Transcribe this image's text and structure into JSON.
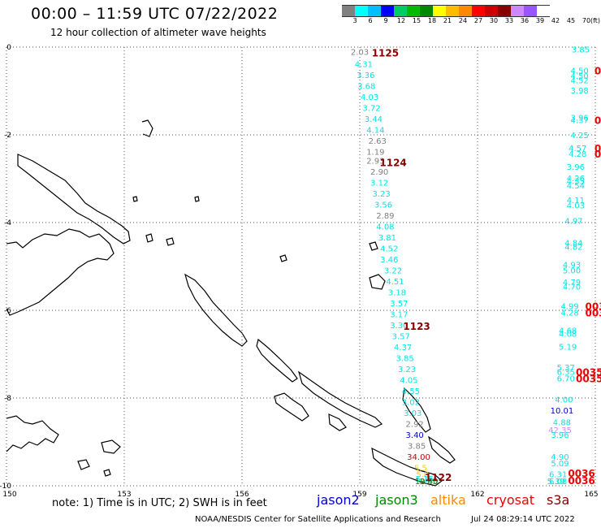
{
  "header": {
    "title": "00:00 – 11:59 UTC 07/22/2022",
    "subtitle": "12 hour collection of altimeter wave heights"
  },
  "color_scale": {
    "ticks": [
      "3",
      "6",
      "9",
      "12",
      "15",
      "18",
      "21",
      "24",
      "27",
      "30",
      "33",
      "36",
      "39",
      "42",
      "45",
      "70"
    ],
    "unit": "(ft)",
    "colors": [
      "#808080",
      "#00ffff",
      "#00bfff",
      "#0000ff",
      "#00cc66",
      "#00bb00",
      "#008800",
      "#ffff00",
      "#ffbb00",
      "#ff8800",
      "#ff0000",
      "#cc0000",
      "#880000",
      "#cc88ff",
      "#9955ff",
      "#ffffff"
    ]
  },
  "map": {
    "lon_labels": [
      "150",
      "153",
      "156",
      "159",
      "162",
      "165"
    ],
    "lat_labels": [
      "0",
      "-2",
      "-4",
      "-6",
      "-8",
      "-10"
    ],
    "lon_range": [
      150,
      165
    ],
    "lat_range": [
      -10,
      0
    ]
  },
  "observations": [
    {
      "value": "2.03",
      "lon": 159.0,
      "lat": -0.1,
      "color": "#808080"
    },
    {
      "value": "4.31",
      "lon": 159.1,
      "lat": -0.38,
      "color": "#00e5e5"
    },
    {
      "value": "3.36",
      "lon": 159.15,
      "lat": -0.63,
      "color": "#00e5e5"
    },
    {
      "value": "3.68",
      "lon": 159.17,
      "lat": -0.88,
      "color": "#00e5e5"
    },
    {
      "value": "4.03",
      "lon": 159.25,
      "lat": -1.13,
      "color": "#00e5e5"
    },
    {
      "value": "3.72",
      "lon": 159.3,
      "lat": -1.38,
      "color": "#00e5e5"
    },
    {
      "value": "3.44",
      "lon": 159.35,
      "lat": -1.63,
      "color": "#00e5e5"
    },
    {
      "value": "4.14",
      "lon": 159.4,
      "lat": -1.88,
      "color": "#00e5e5"
    },
    {
      "value": "2.63",
      "lon": 159.45,
      "lat": -2.13,
      "color": "#808080"
    },
    {
      "value": "1.19",
      "lon": 159.4,
      "lat": -2.38,
      "color": "#808080"
    },
    {
      "value": "2.93",
      "lon": 159.4,
      "lat": -2.58,
      "color": "#808080"
    },
    {
      "value": "2.90",
      "lon": 159.5,
      "lat": -2.83,
      "color": "#808080"
    },
    {
      "value": "3.12",
      "lon": 159.5,
      "lat": -3.08,
      "color": "#00e5e5"
    },
    {
      "value": "3.23",
      "lon": 159.55,
      "lat": -3.33,
      "color": "#00e5e5"
    },
    {
      "value": "3.56",
      "lon": 159.6,
      "lat": -3.58,
      "color": "#00e5e5"
    },
    {
      "value": "2.89",
      "lon": 159.65,
      "lat": -3.83,
      "color": "#808080"
    },
    {
      "value": "4.08",
      "lon": 159.65,
      "lat": -4.08,
      "color": "#00e5e5"
    },
    {
      "value": "3.81",
      "lon": 159.7,
      "lat": -4.33,
      "color": "#00e5e5"
    },
    {
      "value": "4.52",
      "lon": 159.75,
      "lat": -4.58,
      "color": "#00e5e5"
    },
    {
      "value": "3.46",
      "lon": 159.75,
      "lat": -4.83,
      "color": "#00e5e5"
    },
    {
      "value": "3.22",
      "lon": 159.85,
      "lat": -5.08,
      "color": "#00e5e5"
    },
    {
      "value": "4.51",
      "lon": 159.9,
      "lat": -5.33,
      "color": "#00e5e5"
    },
    {
      "value": "3.18",
      "lon": 159.95,
      "lat": -5.58,
      "color": "#00e5e5"
    },
    {
      "value": "3.57",
      "lon": 160.0,
      "lat": -5.83,
      "color": "#00e5e5"
    },
    {
      "value": "3.17",
      "lon": 160.0,
      "lat": -6.08,
      "color": "#00e5e5"
    },
    {
      "value": "3.30",
      "lon": 160.0,
      "lat": -6.33,
      "color": "#00e5e5"
    },
    {
      "value": "3.57",
      "lon": 160.05,
      "lat": -6.58,
      "color": "#00e5e5"
    },
    {
      "value": "4.37",
      "lon": 160.1,
      "lat": -6.83,
      "color": "#00e5e5"
    },
    {
      "value": "3.85",
      "lon": 160.15,
      "lat": -7.08,
      "color": "#00e5e5"
    },
    {
      "value": "3.23",
      "lon": 160.2,
      "lat": -7.33,
      "color": "#00e5e5"
    },
    {
      "value": "4.05",
      "lon": 160.25,
      "lat": -7.58,
      "color": "#00e5e5"
    },
    {
      "value": "4.55",
      "lon": 160.3,
      "lat": -7.83,
      "color": "#00e5e5"
    },
    {
      "value": "3.02",
      "lon": 160.3,
      "lat": -8.08,
      "color": "#00e5e5"
    },
    {
      "value": "3.03",
      "lon": 160.35,
      "lat": -8.33,
      "color": "#00e5e5"
    },
    {
      "value": "2.92",
      "lon": 160.4,
      "lat": -8.58,
      "color": "#808080"
    },
    {
      "value": "3.40",
      "lon": 160.4,
      "lat": -8.83,
      "color": "#0000cc"
    },
    {
      "value": "3.85",
      "lon": 160.45,
      "lat": -9.08,
      "color": "#808080"
    },
    {
      "value": "34.00",
      "lon": 160.5,
      "lat": -9.33,
      "color": "#cc0000"
    },
    {
      "value": "5.5",
      "lon": 160.55,
      "lat": -9.58,
      "color": "#dddd00"
    },
    {
      "value": "5.0",
      "lon": 160.6,
      "lat": -9.73,
      "color": "#ffbb00"
    },
    {
      "value": "5.15",
      "lon": 160.65,
      "lat": -9.83,
      "color": "#00e5e5"
    },
    {
      "value": "2.65",
      "lon": 160.75,
      "lat": -10.12,
      "color": "#808080"
    },
    {
      "value": "19.40",
      "lon": 160.7,
      "lat": -10.37,
      "color": "#008800"
    },
    {
      "value": "3.85",
      "lon": 164.7,
      "lat": -0.05,
      "color": "#00e5e5"
    },
    {
      "value": "4.50",
      "lon": 164.6,
      "lat": -0.53,
      "color": "#00e5e5"
    },
    {
      "value": "4.50",
      "lon": 164.6,
      "lat": -0.65,
      "color": "#00e5e5"
    },
    {
      "value": "4.52",
      "lon": 164.6,
      "lat": -0.75,
      "color": "#00e5e5"
    },
    {
      "value": "3.98",
      "lon": 164.6,
      "lat": -0.98,
      "color": "#00e5e5"
    },
    {
      "value": "3.96",
      "lon": 164.6,
      "lat": -1.6,
      "color": "#00e5e5"
    },
    {
      "value": "4.37",
      "lon": 164.6,
      "lat": -1.66,
      "color": "#00e5e5"
    },
    {
      "value": "4.25",
      "lon": 164.6,
      "lat": -2.0,
      "color": "#00e5e5"
    },
    {
      "value": "4.57",
      "lon": 164.55,
      "lat": -2.3,
      "color": "#00e5e5"
    },
    {
      "value": "4.28",
      "lon": 164.55,
      "lat": -2.43,
      "color": "#00e5e5"
    },
    {
      "value": "3.96",
      "lon": 164.5,
      "lat": -2.72,
      "color": "#00e5e5"
    },
    {
      "value": "4.26",
      "lon": 164.5,
      "lat": -2.98,
      "color": "#00e5e5"
    },
    {
      "value": "4.35",
      "lon": 164.5,
      "lat": -3.05,
      "color": "#00e5e5"
    },
    {
      "value": "4.54",
      "lon": 164.5,
      "lat": -3.15,
      "color": "#00e5e5"
    },
    {
      "value": "4.11",
      "lon": 164.5,
      "lat": -3.48,
      "color": "#00e5e5"
    },
    {
      "value": "4.03",
      "lon": 164.5,
      "lat": -3.6,
      "color": "#00e5e5"
    },
    {
      "value": "4.97",
      "lon": 164.45,
      "lat": -3.95,
      "color": "#00e5e5"
    },
    {
      "value": "4.84",
      "lon": 164.45,
      "lat": -4.45,
      "color": "#00e5e5"
    },
    {
      "value": "4.82",
      "lon": 164.45,
      "lat": -4.55,
      "color": "#00e5e5"
    },
    {
      "value": "4.93",
      "lon": 164.4,
      "lat": -4.95,
      "color": "#00e5e5"
    },
    {
      "value": "5.00",
      "lon": 164.4,
      "lat": -5.08,
      "color": "#00e5e5"
    },
    {
      "value": "4.79",
      "lon": 164.4,
      "lat": -5.35,
      "color": "#00e5e5"
    },
    {
      "value": "4.70",
      "lon": 164.4,
      "lat": -5.45,
      "color": "#00e5e5"
    },
    {
      "value": "4.99",
      "lon": 164.35,
      "lat": -5.9,
      "color": "#00e5e5"
    },
    {
      "value": "4.28",
      "lon": 164.35,
      "lat": -6.05,
      "color": "#00e5e5"
    },
    {
      "value": "4.68",
      "lon": 164.3,
      "lat": -6.45,
      "color": "#00e5e5"
    },
    {
      "value": "4.08",
      "lon": 164.3,
      "lat": -6.53,
      "color": "#00e5e5"
    },
    {
      "value": "5.19",
      "lon": 164.3,
      "lat": -6.82,
      "color": "#00e5e5"
    },
    {
      "value": "5.37",
      "lon": 164.25,
      "lat": -7.3,
      "color": "#00e5e5"
    },
    {
      "value": "6.35",
      "lon": 164.25,
      "lat": -7.4,
      "color": "#00e5e5"
    },
    {
      "value": "6.70",
      "lon": 164.25,
      "lat": -7.55,
      "color": "#00e5e5"
    },
    {
      "value": "4.00",
      "lon": 164.2,
      "lat": -8.03,
      "color": "#00e5e5"
    },
    {
      "value": "10.01",
      "lon": 164.15,
      "lat": -8.28,
      "color": "#0000cc"
    },
    {
      "value": "4.88",
      "lon": 164.15,
      "lat": -8.55,
      "color": "#00e5e5"
    },
    {
      "value": "42.35",
      "lon": 164.1,
      "lat": -8.72,
      "color": "#cc88ff"
    },
    {
      "value": "3.96",
      "lon": 164.1,
      "lat": -8.83,
      "color": "#00e5e5"
    },
    {
      "value": "4.90",
      "lon": 164.1,
      "lat": -9.33,
      "color": "#00e5e5"
    },
    {
      "value": "5.09",
      "lon": 164.1,
      "lat": -9.48,
      "color": "#00e5e5"
    },
    {
      "value": "6.31",
      "lon": 164.05,
      "lat": -9.73,
      "color": "#00e5e5"
    },
    {
      "value": "6.08",
      "lon": 164.05,
      "lat": -9.93,
      "color": "#00e5e5"
    },
    {
      "value": "5.39",
      "lon": 164.0,
      "lat": -10.17,
      "color": "#00e5e5"
    }
  ],
  "pass_times": [
    {
      "label": "1125",
      "lon": 159.65,
      "lat": -0.12,
      "color": "#880000"
    },
    {
      "label": "1124",
      "lon": 159.85,
      "lat": -2.62,
      "color": "#880000"
    },
    {
      "label": "1123",
      "lon": 160.45,
      "lat": -6.35,
      "color": "#880000"
    },
    {
      "label": "1122",
      "lon": 161.0,
      "lat": -9.8,
      "color": "#880000"
    },
    {
      "label": "0036",
      "lon": 164.65,
      "lat": -9.7,
      "color": "#ee0000"
    },
    {
      "label": "0036",
      "lon": 164.65,
      "lat": -10.17,
      "color": "#ee0000"
    },
    {
      "label": "0035",
      "lon": 164.85,
      "lat": -7.4,
      "color": "#ee0000"
    },
    {
      "label": "0035",
      "lon": 164.85,
      "lat": -7.55,
      "color": "#ee0000"
    },
    {
      "label": "003",
      "lon": 165.0,
      "lat": -5.9,
      "color": "#ee0000"
    },
    {
      "label": "003",
      "lon": 165.0,
      "lat": -6.05,
      "color": "#ee0000"
    },
    {
      "label": "0",
      "lon": 165.15,
      "lat": -2.3,
      "color": "#ee0000"
    },
    {
      "label": "0",
      "lon": 165.15,
      "lat": -2.43,
      "color": "#ee0000"
    },
    {
      "label": "0",
      "lon": 165.1,
      "lat": -1.66,
      "color": "#ee0000"
    },
    {
      "label": "0",
      "lon": 165.2,
      "lat": -0.53,
      "color": "#ee0000"
    }
  ],
  "footer": {
    "note": "note:  1) Time is in UTC;  2) SWH is in feet",
    "satellites": [
      {
        "name": "jason2",
        "color": "#0000cc"
      },
      {
        "name": "jason3",
        "color": "#008800"
      },
      {
        "name": "altika",
        "color": "#ff8800"
      },
      {
        "name": "cryosat",
        "color": "#ee0000"
      },
      {
        "name": "s3a",
        "color": "#880000"
      }
    ],
    "credit": "NOAA/NESDIS Center for Satellite Applications and Research",
    "timestamp": "Jul 24 08:29:14 UTC 2022"
  }
}
